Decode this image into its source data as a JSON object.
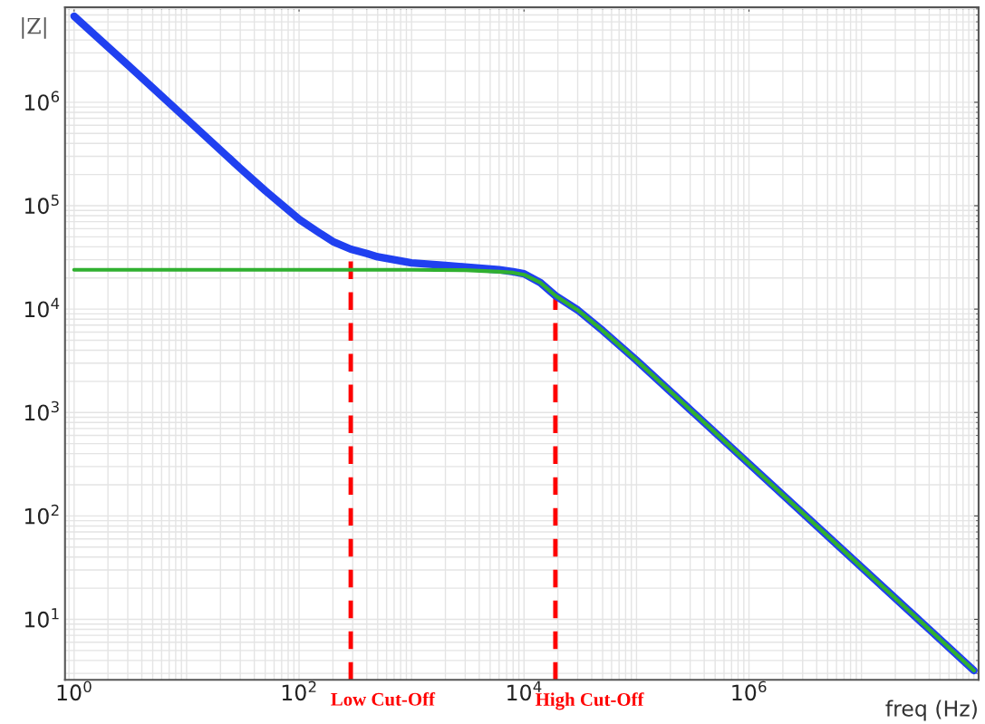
{
  "chart_data": {
    "type": "line",
    "xlabel": "freq (Hz)",
    "ylabel": "|Z|",
    "log": "xy",
    "grid": true,
    "marker": "none",
    "line_style": "solid",
    "xlim": [
      0.83,
      110000000
    ],
    "ylim": [
      2.6,
      8300000
    ],
    "xticks": [
      {
        "value": 1,
        "label": "10$^{0}$"
      },
      {
        "value": 100,
        "label": "10$^{2}$"
      },
      {
        "value": 10000,
        "label": "10$^{4}$"
      },
      {
        "value": 1000000,
        "label": "10$^{6}$"
      }
    ],
    "yticks": [
      {
        "value": 10,
        "label": "10$^{1}$"
      },
      {
        "value": 100,
        "label": "10$^{2}$"
      },
      {
        "value": 1000,
        "label": "10$^{3}$"
      },
      {
        "value": 10000,
        "label": "10$^{4}$"
      },
      {
        "value": 100000,
        "label": "10$^{5}$"
      },
      {
        "value": 1000000,
        "label": "10$^{6}$"
      }
    ],
    "series": [
      {
        "color": "#2040f0",
        "x": [
          1,
          3,
          10,
          30,
          50,
          100,
          150,
          200,
          288,
          400,
          500,
          1000,
          2000,
          3000,
          6000,
          8000,
          10000,
          14000,
          19000,
          30000,
          50000,
          100000,
          1000000,
          10000000,
          100000000
        ],
        "values": [
          6800000,
          2300000,
          690000,
          230000,
          140000,
          74000,
          55000,
          45000,
          38000,
          34500,
          32000,
          28000,
          26500,
          25500,
          24000,
          23000,
          22000,
          18000,
          13500,
          9800,
          6200,
          3200,
          320,
          32,
          3.2
        ]
      },
      {
        "color": "#30b030",
        "x": [
          1,
          10,
          100,
          1000,
          3000,
          6000,
          8000,
          10000,
          14000,
          19000,
          30000,
          50000,
          100000,
          1000000,
          10000000,
          100000000
        ],
        "values": [
          24000,
          24000,
          24000,
          24000,
          23800,
          23000,
          22500,
          21500,
          18000,
          13500,
          9800,
          6200,
          3200,
          320,
          32,
          3.2
        ]
      }
    ],
    "ref_lines": [
      {
        "axis": "x",
        "value": 288,
        "label": "Low Cut-Off",
        "color": "#ff0000",
        "line_style": "dashed"
      },
      {
        "axis": "x",
        "value": 19000,
        "label": "High Cut-Off",
        "color": "#ff0000",
        "line_style": "dashed"
      }
    ]
  }
}
